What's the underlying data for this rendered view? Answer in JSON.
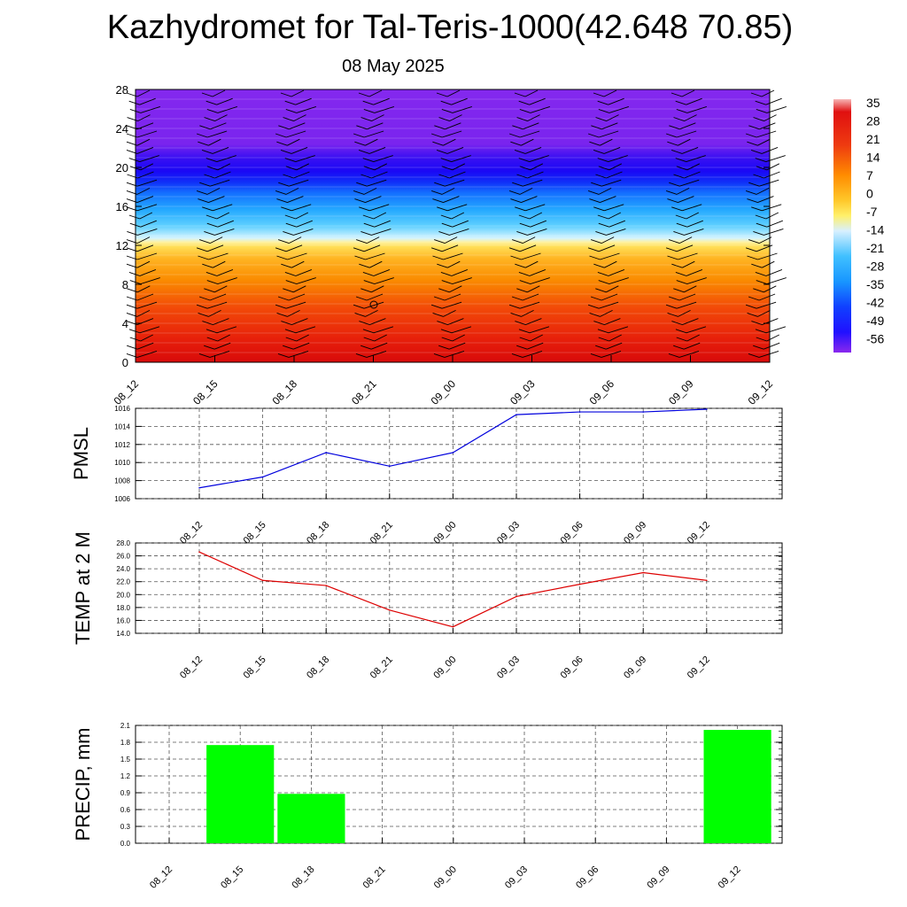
{
  "header": {
    "title": "Kazhydromet for Tal-Teris-1000(42.648 70.85)",
    "date": "08 May 2025"
  },
  "chart_data": [
    {
      "type": "heatmap",
      "name": "vertical-profile",
      "x_ticks": [
        "08_12",
        "08_15",
        "08_18",
        "08_21",
        "09_00",
        "09_03",
        "09_06",
        "09_09",
        "09_12"
      ],
      "y_ticks": [
        "0",
        "4",
        "8",
        "12",
        "16",
        "20",
        "24",
        "28"
      ],
      "ylim": [
        0,
        28
      ],
      "colorbar": {
        "labels": [
          "35",
          "28",
          "21",
          "14",
          "7",
          "0",
          "-7",
          "-14",
          "-21",
          "-28",
          "-35",
          "-42",
          "-49",
          "-56"
        ]
      },
      "bands": [
        {
          "from": 0,
          "to": 4,
          "value": 24
        },
        {
          "from": 4,
          "to": 8,
          "value": 16
        },
        {
          "from": 8,
          "to": 12,
          "value": 4
        },
        {
          "from": 12,
          "to": 13,
          "value": -8
        },
        {
          "from": 13,
          "to": 16,
          "value": -30
        },
        {
          "from": 16,
          "to": 18,
          "value": -45
        },
        {
          "from": 18,
          "to": 22,
          "value": -58
        },
        {
          "from": 22,
          "to": 28,
          "value": -62
        }
      ]
    },
    {
      "type": "line",
      "name": "pmsl",
      "ylabel": "PMSL",
      "categories": [
        "08_12",
        "08_15",
        "08_18",
        "08_21",
        "09_00",
        "09_03",
        "09_06",
        "09_09",
        "09_12"
      ],
      "values": [
        1007.2,
        1008.4,
        1011.1,
        1009.6,
        1011.1,
        1015.3,
        1015.6,
        1015.6,
        1015.9
      ],
      "ylim": [
        1006,
        1016
      ],
      "y_ticks": [
        "1006",
        "1008",
        "1010",
        "1012",
        "1014",
        "1016"
      ],
      "color": "#0000dd"
    },
    {
      "type": "line",
      "name": "temp",
      "ylabel": "TEMP at 2 M",
      "categories": [
        "08_12",
        "08_15",
        "08_18",
        "08_21",
        "09_00",
        "09_03",
        "09_06",
        "09_09",
        "09_12"
      ],
      "values": [
        26.6,
        22.2,
        21.4,
        17.6,
        15.0,
        19.7,
        21.6,
        23.4,
        22.2
      ],
      "ylim": [
        14,
        28
      ],
      "y_ticks": [
        "14.0",
        "16.0",
        "18.0",
        "20.0",
        "22.0",
        "24.0",
        "26.0",
        "28.0"
      ],
      "color": "#dd0000"
    },
    {
      "type": "bar",
      "name": "precip",
      "ylabel": "PRECIP, mm",
      "categories": [
        "08_12",
        "08_15",
        "08_18",
        "08_21",
        "09_00",
        "09_03",
        "09_06",
        "09_09",
        "09_12"
      ],
      "values": [
        0,
        1.75,
        0.88,
        0,
        0,
        0,
        0,
        0,
        2.02
      ],
      "ylim": [
        0,
        2.1
      ],
      "y_ticks": [
        "0.0",
        "0.3",
        "0.6",
        "0.9",
        "1.2",
        "1.5",
        "1.8",
        "2.1"
      ],
      "color": "#00ff00"
    }
  ]
}
